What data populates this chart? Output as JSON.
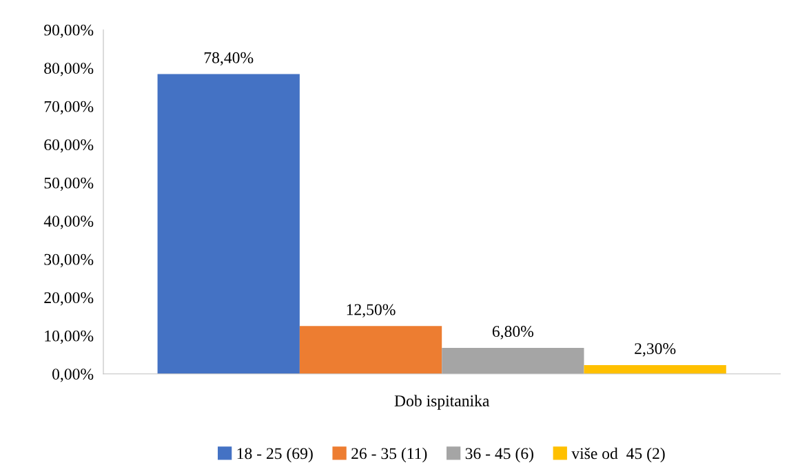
{
  "chart_data": {
    "type": "bar",
    "categories": [
      "Dob ispitanika"
    ],
    "series": [
      {
        "name": "18 - 25 (69)",
        "color": "#4472c4",
        "values": [
          78.4
        ],
        "value_labels": [
          "78,40%"
        ]
      },
      {
        "name": "26 - 35 (11)",
        "color": "#ed7d31",
        "values": [
          12.5
        ],
        "value_labels": [
          "12,50%"
        ]
      },
      {
        "name": "36 - 45 (6)",
        "color": "#a5a5a5",
        "values": [
          6.8
        ],
        "value_labels": [
          "6,80%"
        ]
      },
      {
        "name": "više od  45 (2)",
        "color": "#ffc000",
        "values": [
          2.3
        ],
        "value_labels": [
          "2,30%"
        ]
      }
    ],
    "ylim": [
      0,
      90
    ],
    "yticks": [
      {
        "value": 0,
        "label": "0,00%"
      },
      {
        "value": 10,
        "label": "10,00%"
      },
      {
        "value": 20,
        "label": "20,00%"
      },
      {
        "value": 30,
        "label": "30,00%"
      },
      {
        "value": 40,
        "label": "40,00%"
      },
      {
        "value": 50,
        "label": "50,00%"
      },
      {
        "value": 60,
        "label": "60,00%"
      },
      {
        "value": 70,
        "label": "70,00%"
      },
      {
        "value": 80,
        "label": "80,00%"
      },
      {
        "value": 90,
        "label": "90,00%"
      }
    ],
    "grid": false,
    "legend": "bottom"
  }
}
